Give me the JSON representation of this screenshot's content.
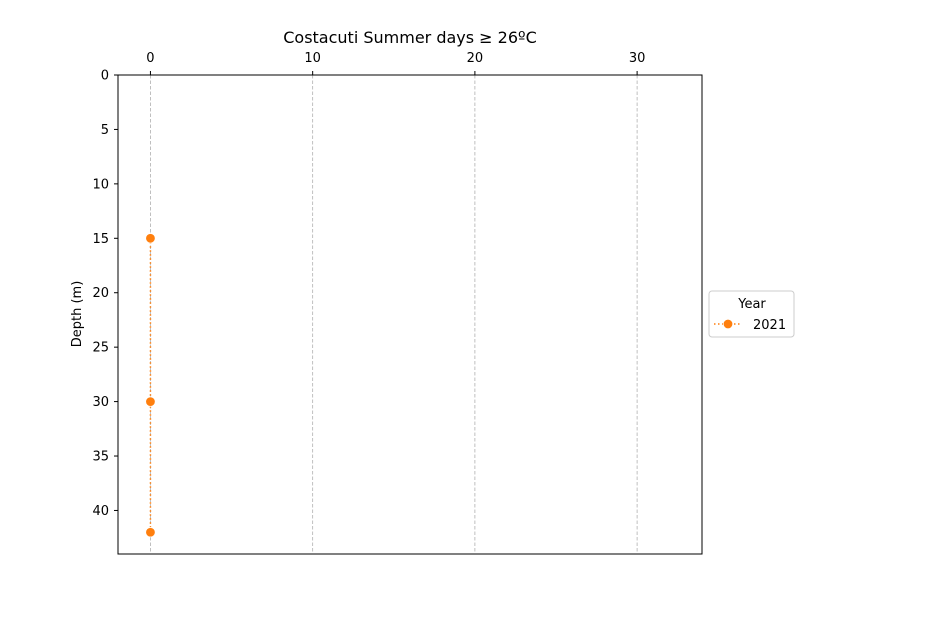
{
  "chart_data": {
    "type": "line",
    "title": "Costacuti Summer days ≥ 26ºC",
    "xlabel": "",
    "ylabel": "Depth (m)",
    "x_axis_position": "top",
    "y_inverted": true,
    "xlim": [
      -2,
      34
    ],
    "ylim": [
      0,
      44
    ],
    "xticks": [
      0,
      10,
      20,
      30
    ],
    "yticks": [
      0,
      5,
      10,
      15,
      20,
      25,
      30,
      35,
      40
    ],
    "grid": "vertical dashed",
    "legend": {
      "title": "Year",
      "placement": "center-right outside"
    },
    "series": [
      {
        "name": "2021",
        "color": "#ff7f0e",
        "line_style": "dotted",
        "marker": "circle",
        "points": [
          {
            "x": 0,
            "y": 15
          },
          {
            "x": 0,
            "y": 30
          },
          {
            "x": 0,
            "y": 42
          }
        ]
      }
    ]
  }
}
